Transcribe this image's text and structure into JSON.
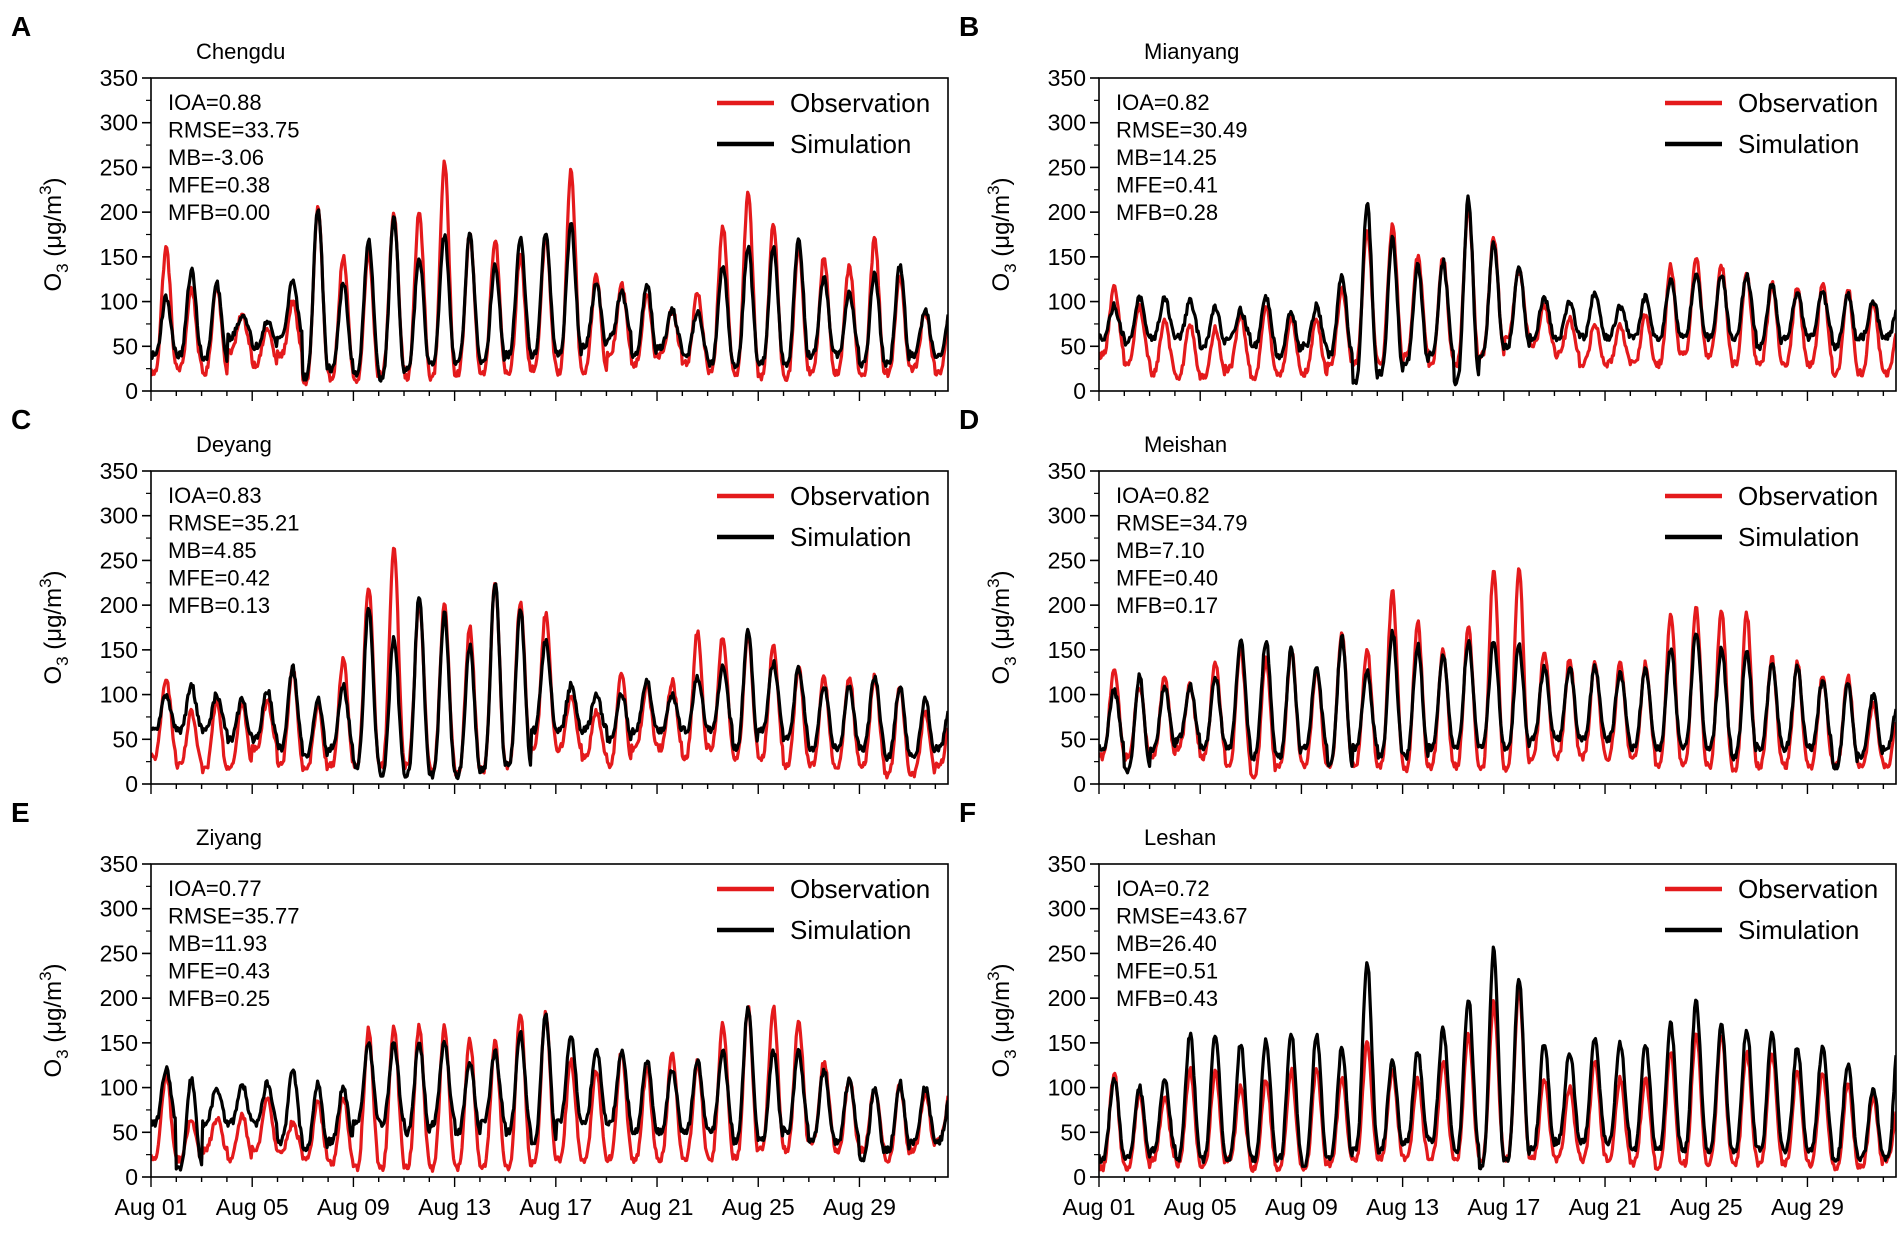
{
  "figure": {
    "colors": {
      "observation": "#e41a1c",
      "simulation": "#000000"
    },
    "y_label_main": "O",
    "y_label_sub": "3",
    "y_label_unit": " (μg/m",
    "y_label_sup": "3",
    "y_label_close": ")"
  },
  "chart_data": [
    {
      "panel": "A",
      "city": "Chengdu",
      "type": "line",
      "stats": [
        "IOA=0.88",
        "RMSE=33.75",
        "MB=-3.06",
        "MFE=0.38",
        "MFB=0.00"
      ],
      "legend": [
        "Observation",
        "Simulation"
      ],
      "xlabel": "",
      "ylabel": "O3 (μg/m3)",
      "ylim": [
        0,
        350
      ],
      "yticks": [
        0,
        50,
        100,
        150,
        200,
        250,
        300,
        350
      ],
      "x_range_days": [
        1,
        32.5
      ],
      "xtick_days": [
        1,
        5,
        9,
        13,
        17,
        21,
        25,
        29
      ],
      "xtick_labels": [
        "Aug 01",
        "Aug 05",
        "Aug 09",
        "Aug 13",
        "Aug 17",
        "Aug 21",
        "Aug 25",
        "Aug 29"
      ],
      "series": [
        {
          "name": "Observation",
          "daily_peaks": [
            160,
            115,
            120,
            85,
            70,
            100,
            205,
            150,
            155,
            200,
            200,
            255,
            175,
            170,
            150,
            170,
            245,
            130,
            120,
            110,
            90,
            110,
            185,
            220,
            185,
            160,
            150,
            140,
            170,
            130,
            90,
            90
          ],
          "daily_lows": [
            20,
            25,
            20,
            45,
            30,
            40,
            10,
            15,
            10,
            20,
            15,
            15,
            20,
            20,
            20,
            25,
            20,
            20,
            40,
            30,
            40,
            30,
            20,
            20,
            15,
            15,
            20,
            20,
            15,
            20,
            25,
            20
          ]
        },
        {
          "name": "Simulation",
          "daily_peaks": [
            105,
            135,
            120,
            85,
            80,
            125,
            205,
            120,
            170,
            195,
            150,
            175,
            175,
            140,
            170,
            175,
            185,
            120,
            110,
            120,
            90,
            90,
            140,
            160,
            160,
            170,
            125,
            110,
            130,
            140,
            90,
            90
          ],
          "daily_lows": [
            40,
            40,
            35,
            60,
            50,
            60,
            15,
            25,
            20,
            15,
            25,
            30,
            30,
            30,
            40,
            40,
            40,
            50,
            60,
            40,
            50,
            40,
            30,
            30,
            30,
            30,
            40,
            40,
            30,
            30,
            40,
            40
          ]
        }
      ]
    },
    {
      "panel": "B",
      "city": "Mianyang",
      "type": "line",
      "stats": [
        "IOA=0.82",
        "RMSE=30.49",
        "MB=14.25",
        "MFE=0.41",
        "MFB=0.28"
      ],
      "legend": [
        "Observation",
        "Simulation"
      ],
      "xlabel": "",
      "ylabel": "O3 (μg/m3)",
      "ylim": [
        0,
        350
      ],
      "yticks": [
        0,
        50,
        100,
        150,
        200,
        250,
        300,
        350
      ],
      "x_range_days": [
        1,
        32.5
      ],
      "xtick_days": [
        1,
        5,
        9,
        13,
        17,
        21,
        25,
        29
      ],
      "xtick_labels": [
        "Aug 01",
        "Aug 05",
        "Aug 09",
        "Aug 13",
        "Aug 17",
        "Aug 21",
        "Aug 25",
        "Aug 29"
      ],
      "series": [
        {
          "name": "Observation",
          "daily_peaks": [
            115,
            95,
            80,
            75,
            70,
            85,
            95,
            80,
            80,
            115,
            180,
            185,
            150,
            150,
            205,
            170,
            135,
            95,
            80,
            75,
            75,
            85,
            140,
            150,
            140,
            130,
            120,
            115,
            120,
            115,
            100,
            70
          ],
          "daily_lows": [
            40,
            30,
            20,
            15,
            15,
            25,
            15,
            20,
            20,
            30,
            30,
            30,
            40,
            30,
            30,
            40,
            60,
            50,
            40,
            30,
            30,
            30,
            30,
            40,
            40,
            30,
            30,
            30,
            30,
            20,
            20,
            20
          ]
        },
        {
          "name": "Simulation",
          "daily_peaks": [
            95,
            105,
            105,
            100,
            95,
            90,
            105,
            90,
            95,
            130,
            210,
            170,
            140,
            145,
            215,
            165,
            140,
            105,
            100,
            110,
            95,
            105,
            125,
            130,
            130,
            130,
            120,
            110,
            110,
            110,
            100,
            95
          ],
          "daily_lows": [
            60,
            55,
            60,
            60,
            50,
            60,
            50,
            40,
            50,
            40,
            10,
            20,
            30,
            40,
            10,
            40,
            50,
            60,
            60,
            60,
            60,
            60,
            60,
            60,
            60,
            60,
            50,
            60,
            60,
            50,
            60,
            60
          ]
        }
      ]
    },
    {
      "panel": "C",
      "city": "Deyang",
      "type": "line",
      "stats": [
        "IOA=0.83",
        "RMSE=35.21",
        "MB=4.85",
        "MFE=0.42",
        "MFB=0.13"
      ],
      "legend": [
        "Observation",
        "Simulation"
      ],
      "xlabel": "",
      "ylabel": "O3 (μg/m3)",
      "ylim": [
        0,
        350
      ],
      "yticks": [
        0,
        50,
        100,
        150,
        200,
        250,
        300,
        350
      ],
      "x_range_days": [
        1,
        32.5
      ],
      "xtick_days": [
        1,
        5,
        9,
        13,
        17,
        21,
        25,
        29
      ],
      "xtick_labels": [
        "Aug 01",
        "Aug 05",
        "Aug 09",
        "Aug 13",
        "Aug 17",
        "Aug 21",
        "Aug 25",
        "Aug 29"
      ],
      "series": [
        {
          "name": "Observation",
          "daily_peaks": [
            120,
            80,
            95,
            90,
            95,
            130,
            90,
            140,
            220,
            265,
            205,
            200,
            175,
            225,
            205,
            190,
            100,
            80,
            125,
            110,
            115,
            170,
            165,
            165,
            155,
            130,
            120,
            120,
            120,
            110,
            80,
            70
          ],
          "daily_lows": [
            30,
            20,
            15,
            20,
            40,
            20,
            15,
            20,
            20,
            20,
            20,
            15,
            10,
            15,
            20,
            40,
            40,
            30,
            20,
            40,
            40,
            30,
            40,
            30,
            30,
            20,
            20,
            20,
            20,
            10,
            10,
            20
          ]
        },
        {
          "name": "Simulation",
          "daily_peaks": [
            100,
            110,
            100,
            95,
            105,
            130,
            95,
            110,
            195,
            165,
            210,
            190,
            155,
            225,
            195,
            160,
            110,
            100,
            100,
            115,
            100,
            120,
            130,
            170,
            135,
            130,
            110,
            110,
            120,
            110,
            95,
            90
          ],
          "daily_lows": [
            60,
            60,
            60,
            50,
            50,
            40,
            30,
            40,
            20,
            10,
            10,
            10,
            10,
            15,
            20,
            60,
            60,
            60,
            50,
            60,
            60,
            60,
            60,
            40,
            60,
            50,
            40,
            40,
            40,
            30,
            30,
            40
          ]
        }
      ]
    },
    {
      "panel": "D",
      "city": "Meishan",
      "type": "line",
      "stats": [
        "IOA=0.82",
        "RMSE=34.79",
        "MB=7.10",
        "MFE=0.40",
        "MFB=0.17"
      ],
      "legend": [
        "Observation",
        "Simulation"
      ],
      "xlabel": "",
      "ylabel": "O3 (μg/m3)",
      "ylim": [
        0,
        350
      ],
      "yticks": [
        0,
        50,
        100,
        150,
        200,
        250,
        300,
        350
      ],
      "x_range_days": [
        1,
        32.5
      ],
      "xtick_days": [
        1,
        5,
        9,
        13,
        17,
        21,
        25,
        29
      ],
      "xtick_labels": [
        "Aug 01",
        "Aug 05",
        "Aug 09",
        "Aug 13",
        "Aug 17",
        "Aug 21",
        "Aug 25",
        "Aug 29"
      ],
      "series": [
        {
          "name": "Observation",
          "daily_peaks": [
            130,
            110,
            120,
            110,
            135,
            150,
            140,
            150,
            130,
            170,
            150,
            215,
            180,
            150,
            175,
            240,
            240,
            150,
            140,
            135,
            135,
            135,
            190,
            195,
            195,
            190,
            140,
            135,
            120,
            120,
            90,
            80
          ],
          "daily_lows": [
            30,
            30,
            30,
            40,
            30,
            20,
            10,
            20,
            20,
            20,
            20,
            20,
            15,
            20,
            20,
            15,
            15,
            30,
            30,
            30,
            30,
            30,
            20,
            20,
            20,
            15,
            20,
            20,
            20,
            20,
            20,
            20
          ]
        },
        {
          "name": "Simulation",
          "daily_peaks": [
            105,
            120,
            110,
            110,
            120,
            160,
            160,
            150,
            130,
            165,
            125,
            170,
            155,
            145,
            160,
            160,
            155,
            130,
            130,
            130,
            125,
            130,
            150,
            170,
            150,
            150,
            135,
            130,
            115,
            115,
            100,
            95
          ],
          "daily_lows": [
            40,
            15,
            40,
            50,
            40,
            40,
            30,
            30,
            40,
            20,
            40,
            30,
            30,
            40,
            40,
            40,
            40,
            50,
            50,
            50,
            50,
            40,
            40,
            40,
            40,
            30,
            40,
            40,
            40,
            20,
            30,
            40
          ]
        }
      ]
    },
    {
      "panel": "E",
      "city": "Ziyang",
      "type": "line",
      "stats": [
        "IOA=0.77",
        "RMSE=35.77",
        "MB=11.93",
        "MFE=0.43",
        "MFB=0.25"
      ],
      "legend": [
        "Observation",
        "Simulation"
      ],
      "xlabel": "",
      "ylabel": "O3 (μg/m3)",
      "ylim": [
        0,
        350
      ],
      "yticks": [
        0,
        50,
        100,
        150,
        200,
        250,
        300,
        350
      ],
      "x_range_days": [
        1,
        32.5
      ],
      "xtick_days": [
        1,
        5,
        9,
        13,
        17,
        21,
        25,
        29
      ],
      "xtick_labels": [
        "Aug 01",
        "Aug 05",
        "Aug 09",
        "Aug 13",
        "Aug 17",
        "Aug 21",
        "Aug 25",
        "Aug 29"
      ],
      "series": [
        {
          "name": "Observation",
          "daily_peaks": [
            115,
            65,
            65,
            70,
            90,
            60,
            85,
            90,
            165,
            170,
            170,
            170,
            155,
            150,
            185,
            185,
            130,
            120,
            140,
            120,
            140,
            130,
            170,
            190,
            190,
            175,
            130,
            110,
            100,
            105,
            95,
            95
          ],
          "daily_lows": [
            20,
            20,
            30,
            20,
            30,
            30,
            20,
            15,
            10,
            10,
            10,
            10,
            10,
            10,
            10,
            15,
            20,
            20,
            20,
            20,
            20,
            20,
            20,
            20,
            30,
            30,
            40,
            30,
            30,
            20,
            30,
            40
          ]
        },
        {
          "name": "Simulation",
          "daily_peaks": [
            120,
            110,
            100,
            105,
            105,
            120,
            105,
            100,
            150,
            150,
            150,
            150,
            130,
            140,
            160,
            180,
            160,
            145,
            140,
            130,
            120,
            130,
            140,
            190,
            140,
            140,
            120,
            110,
            100,
            105,
            100,
            90
          ],
          "daily_lows": [
            60,
            10,
            60,
            60,
            60,
            40,
            30,
            40,
            60,
            60,
            50,
            60,
            50,
            60,
            50,
            40,
            60,
            60,
            60,
            50,
            50,
            50,
            50,
            40,
            40,
            50,
            40,
            40,
            20,
            30,
            40,
            40
          ]
        }
      ]
    },
    {
      "panel": "F",
      "city": "Leshan",
      "type": "line",
      "stats": [
        "IOA=0.72",
        "RMSE=43.67",
        "MB=26.40",
        "MFE=0.51",
        "MFB=0.43"
      ],
      "legend": [
        "Observation",
        "Simulation"
      ],
      "xlabel": "",
      "ylabel": "O3 (μg/m3)",
      "ylim": [
        0,
        350
      ],
      "yticks": [
        0,
        50,
        100,
        150,
        200,
        250,
        300,
        350
      ],
      "x_range_days": [
        1,
        32.5
      ],
      "xtick_days": [
        1,
        5,
        9,
        13,
        17,
        21,
        25,
        29
      ],
      "xtick_labels": [
        "Aug 01",
        "Aug 05",
        "Aug 09",
        "Aug 13",
        "Aug 17",
        "Aug 21",
        "Aug 25",
        "Aug 29"
      ],
      "series": [
        {
          "name": "Observation",
          "daily_peaks": [
            115,
            95,
            90,
            120,
            120,
            100,
            110,
            120,
            120,
            110,
            150,
            120,
            110,
            130,
            160,
            195,
            210,
            110,
            100,
            130,
            110,
            110,
            140,
            160,
            160,
            140,
            140,
            120,
            115,
            105,
            90,
            80
          ],
          "daily_lows": [
            10,
            10,
            20,
            15,
            10,
            20,
            10,
            10,
            10,
            15,
            20,
            20,
            20,
            20,
            20,
            20,
            20,
            20,
            20,
            20,
            20,
            15,
            10,
            15,
            15,
            15,
            15,
            15,
            15,
            10,
            10,
            20
          ]
        },
        {
          "name": "Simulation",
          "daily_peaks": [
            110,
            100,
            110,
            160,
            160,
            150,
            155,
            160,
            160,
            145,
            240,
            130,
            140,
            165,
            200,
            255,
            220,
            150,
            140,
            155,
            150,
            150,
            170,
            195,
            170,
            165,
            160,
            145,
            145,
            125,
            100,
            155
          ],
          "daily_lows": [
            20,
            20,
            30,
            20,
            20,
            20,
            20,
            20,
            15,
            20,
            30,
            30,
            40,
            40,
            30,
            10,
            20,
            30,
            40,
            40,
            40,
            30,
            30,
            30,
            30,
            30,
            30,
            30,
            30,
            20,
            20,
            20
          ]
        }
      ]
    }
  ]
}
